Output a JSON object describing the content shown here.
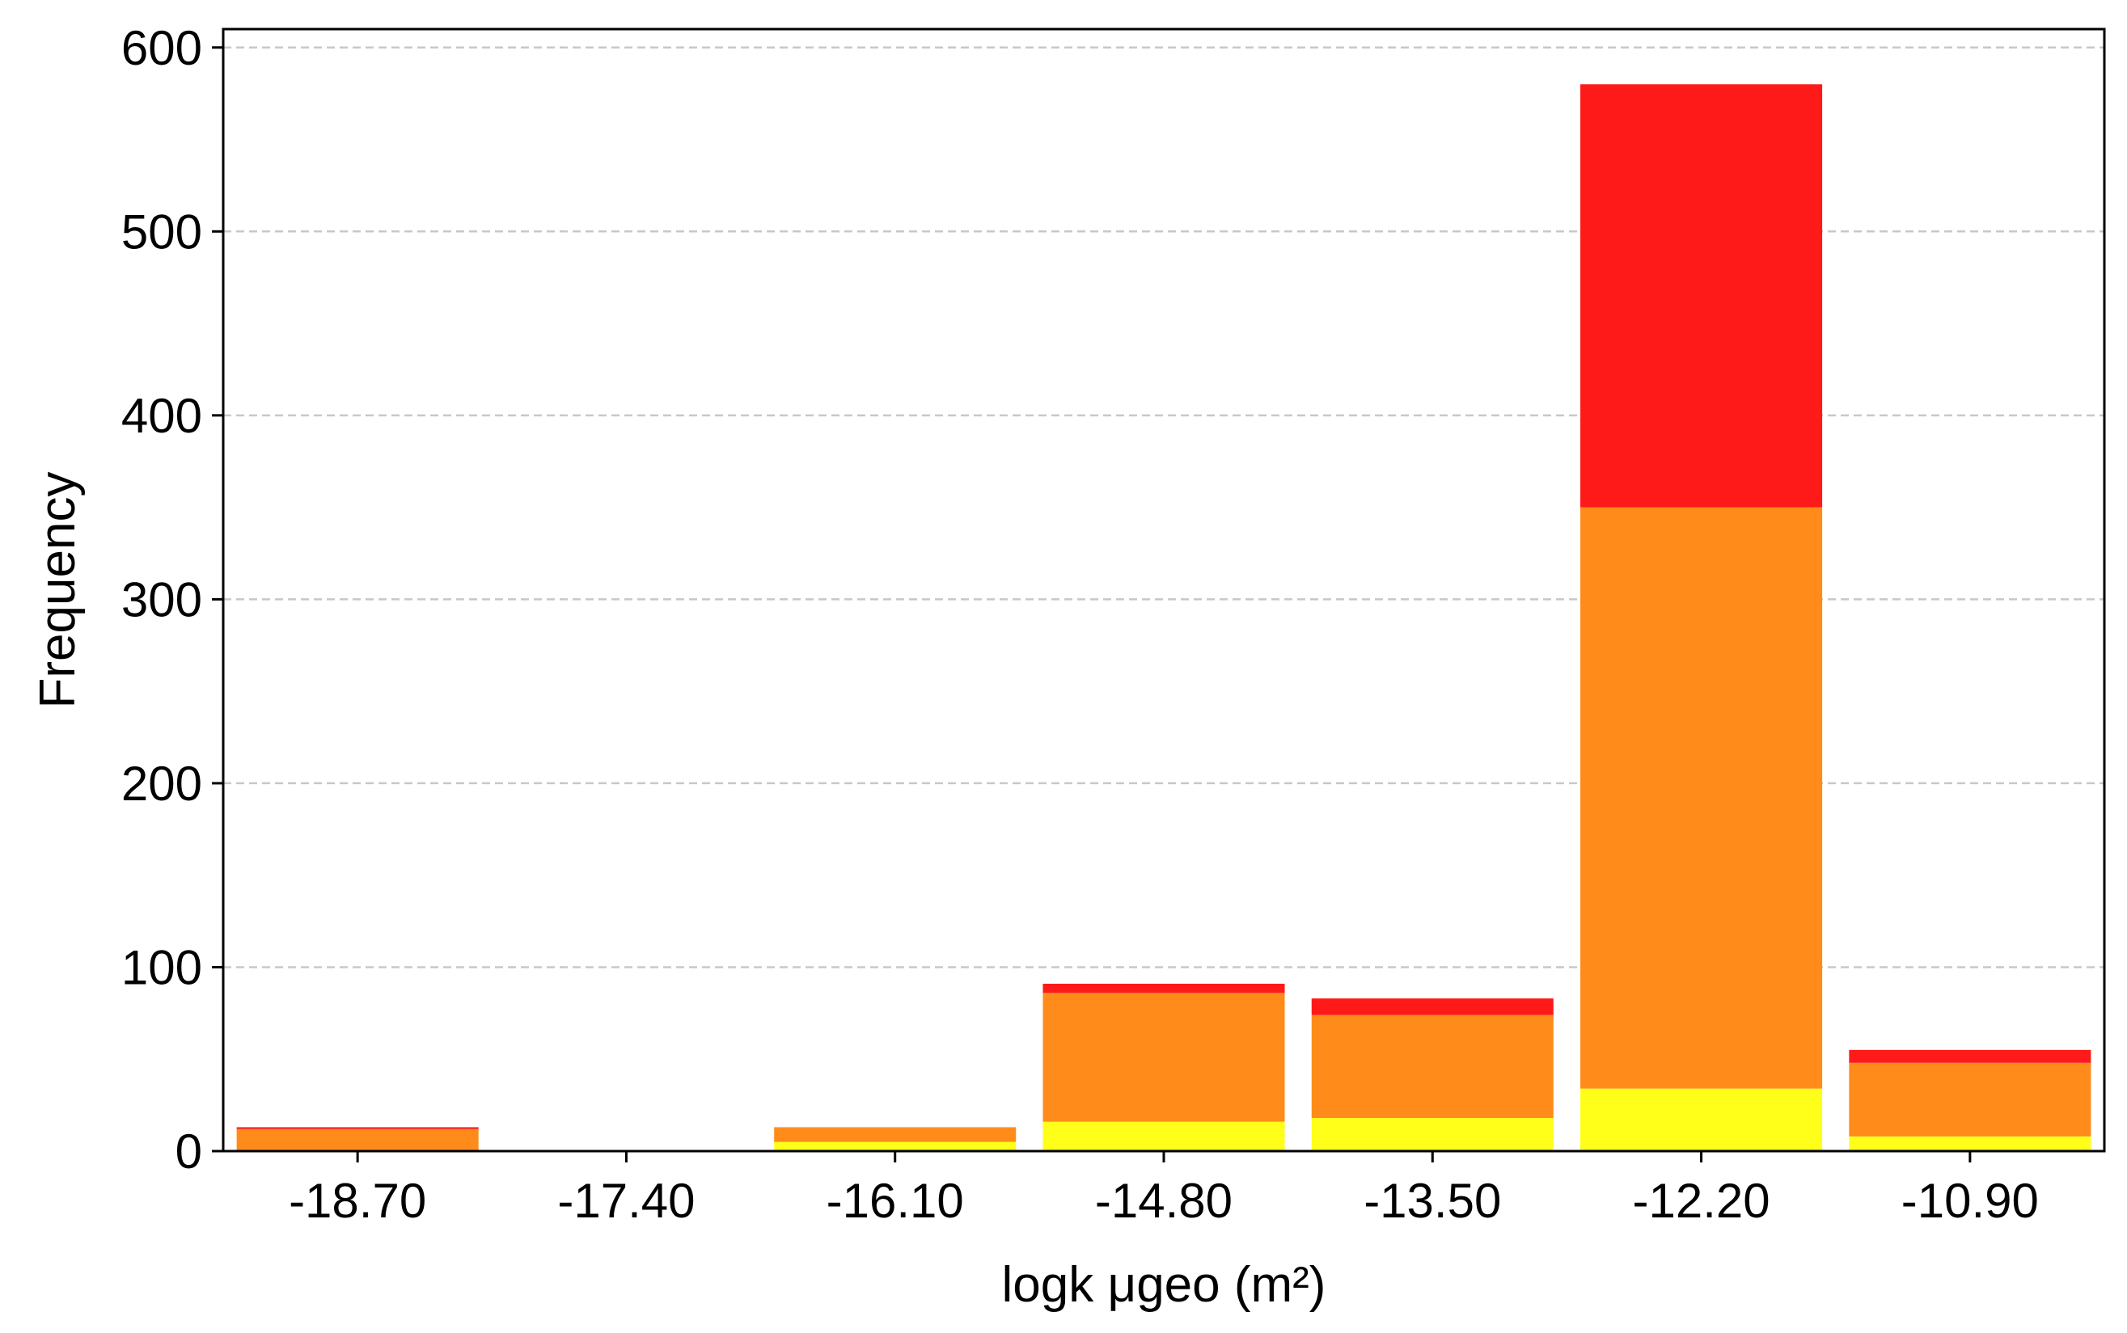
{
  "chart_data": {
    "type": "bar",
    "stacked": true,
    "title": "",
    "xlabel": "logk μgeo (m²)",
    "ylabel": "Frequency",
    "categories": [
      "-18.70",
      "-17.40",
      "-16.10",
      "-14.80",
      "-13.50",
      "-12.20",
      "-10.90"
    ],
    "series": [
      {
        "color": "#ffff1a",
        "values": [
          0,
          0,
          5,
          16,
          18,
          34,
          8
        ]
      },
      {
        "color": "#ff8c1a",
        "values": [
          12,
          0,
          8,
          70,
          56,
          316,
          40
        ]
      },
      {
        "color": "#ff1a1a",
        "values": [
          1,
          0,
          0,
          5,
          9,
          230,
          7
        ]
      }
    ],
    "ylim": [
      0,
      610
    ],
    "yticks": [
      0,
      100,
      200,
      300,
      400,
      500,
      600
    ],
    "grid": {
      "y": true,
      "style": "dashed",
      "color": "#c8c8c8"
    },
    "legend": "none"
  }
}
